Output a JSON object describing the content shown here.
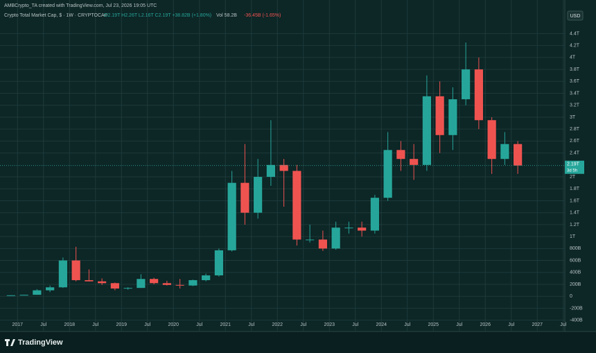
{
  "chart_data": {
    "type": "candlestick",
    "watermark": "AMBCrypto_TA created with TradingView.com, Jul 23, 2026 19:05 UTC",
    "title": "Crypto Total Market Cap, $ · 1W · CRYPTOCAP",
    "ohlc_text": "O2.19T H2.26T L2.16T C2.19T +38.82B (+1.80%)",
    "volume_text": "Vol 58.2B",
    "change_text": "-36.45B (-1.65%)",
    "currency": "USD",
    "brand": "TradingView",
    "up_color": "#26a69a",
    "down_color": "#ef5350",
    "x": [
      2016.75,
      2017.0,
      2017.25,
      2017.5,
      2017.75,
      2018.0,
      2018.25,
      2018.5,
      2018.75,
      2019.0,
      2019.25,
      2019.5,
      2019.75,
      2020.0,
      2020.25,
      2020.5,
      2020.75,
      2021.0,
      2021.25,
      2021.5,
      2021.75,
      2022.0,
      2022.25,
      2022.5,
      2022.75,
      2023.0,
      2023.25,
      2023.5,
      2023.75,
      2024.0,
      2024.25,
      2024.5,
      2024.75,
      2025.0,
      2025.25,
      2025.5,
      2025.75,
      2026.0,
      2026.25,
      2026.5
    ],
    "open": [
      0.012,
      0.017,
      0.025,
      0.1,
      0.15,
      0.6,
      0.27,
      0.25,
      0.22,
      0.13,
      0.14,
      0.29,
      0.22,
      0.19,
      0.18,
      0.27,
      0.35,
      0.77,
      1.9,
      1.4,
      2.0,
      2.2,
      2.1,
      0.95,
      0.95,
      0.8,
      1.15,
      1.15,
      1.1,
      1.65,
      2.45,
      2.3,
      2.2,
      3.35,
      2.7,
      3.3,
      3.8,
      2.95,
      2.3,
      2.55
    ],
    "high": [
      0.018,
      0.027,
      0.12,
      0.18,
      0.65,
      0.83,
      0.45,
      0.3,
      0.23,
      0.15,
      0.37,
      0.31,
      0.26,
      0.29,
      0.28,
      0.38,
      0.8,
      2.1,
      2.55,
      2.3,
      2.95,
      2.3,
      2.2,
      1.2,
      1.1,
      1.25,
      1.25,
      1.25,
      1.7,
      2.75,
      2.6,
      2.55,
      3.7,
      3.6,
      3.5,
      4.25,
      4.0,
      3.0,
      2.75,
      2.6
    ],
    "low": [
      0.011,
      0.016,
      0.025,
      0.07,
      0.14,
      0.25,
      0.25,
      0.19,
      0.1,
      0.11,
      0.14,
      0.2,
      0.18,
      0.13,
      0.17,
      0.25,
      0.33,
      0.75,
      1.2,
      1.3,
      1.85,
      1.5,
      0.85,
      0.9,
      0.76,
      0.78,
      1.05,
      1.0,
      1.05,
      1.6,
      2.1,
      1.95,
      2.1,
      2.4,
      2.45,
      3.2,
      2.8,
      2.05,
      2.2,
      2.05
    ],
    "close": [
      0.017,
      0.025,
      0.1,
      0.15,
      0.6,
      0.27,
      0.25,
      0.22,
      0.13,
      0.14,
      0.29,
      0.22,
      0.19,
      0.18,
      0.27,
      0.35,
      0.77,
      1.9,
      1.4,
      2.0,
      2.2,
      2.1,
      0.95,
      0.95,
      0.8,
      1.15,
      1.15,
      1.1,
      1.65,
      2.45,
      2.3,
      2.2,
      3.35,
      2.7,
      3.3,
      3.8,
      2.95,
      2.3,
      2.55,
      2.19
    ],
    "last_price": {
      "value": 2.19,
      "label": "2.19T"
    },
    "countdown": "3d 5h",
    "xlim": [
      2016.73,
      2027.53
    ],
    "ylim": [
      -0.59,
      4.8
    ],
    "xticks": [
      {
        "value": 2017,
        "label": "2017"
      },
      {
        "value": 2017.5,
        "label": "Jul"
      },
      {
        "value": 2018,
        "label": "2018"
      },
      {
        "value": 2018.5,
        "label": "Jul"
      },
      {
        "value": 2019,
        "label": "2019"
      },
      {
        "value": 2019.5,
        "label": "Jul"
      },
      {
        "value": 2020,
        "label": "2020"
      },
      {
        "value": 2020.5,
        "label": "Jul"
      },
      {
        "value": 2021,
        "label": "2021"
      },
      {
        "value": 2021.5,
        "label": "Jul"
      },
      {
        "value": 2022,
        "label": "2022"
      },
      {
        "value": 2022.5,
        "label": "Jul"
      },
      {
        "value": 2023,
        "label": "2023"
      },
      {
        "value": 2023.5,
        "label": "Jul"
      },
      {
        "value": 2024,
        "label": "2024"
      },
      {
        "value": 2024.5,
        "label": "Jul"
      },
      {
        "value": 2025,
        "label": "2025"
      },
      {
        "value": 2025.5,
        "label": "Jul"
      },
      {
        "value": 2026,
        "label": "2026"
      },
      {
        "value": 2026.5,
        "label": "Jul"
      },
      {
        "value": 2027,
        "label": "2027"
      },
      {
        "value": 2027.5,
        "label": "Jul"
      }
    ],
    "yticks": [
      {
        "value": -0.4,
        "label": "-400B"
      },
      {
        "value": -0.2,
        "label": "-200B"
      },
      0,
      {
        "value": 0.2,
        "label": "200B"
      },
      {
        "value": 0.4,
        "label": "400B"
      },
      {
        "value": 0.6,
        "label": "600B"
      },
      {
        "value": 0.8,
        "label": "800B"
      },
      {
        "value": 1,
        "label": "1T"
      },
      {
        "value": 1.2,
        "label": "1.2T"
      },
      {
        "value": 1.4,
        "label": "1.4T"
      },
      {
        "value": 1.6,
        "label": "1.6T"
      },
      {
        "value": 1.8,
        "label": "1.8T"
      },
      {
        "value": 2,
        "label": "2T"
      },
      {
        "value": 2.4,
        "label": "2.4T"
      },
      {
        "value": 2.6,
        "label": "2.6T"
      },
      {
        "value": 2.8,
        "label": "2.8T"
      },
      {
        "value": 3,
        "label": "3T"
      },
      {
        "value": 3.2,
        "label": "3.2T"
      },
      {
        "value": 3.4,
        "label": "3.4T"
      },
      {
        "value": 3.6,
        "label": "3.6T"
      },
      {
        "value": 3.8,
        "label": "3.8T"
      },
      {
        "value": 4,
        "label": "4T"
      },
      {
        "value": 4.2,
        "label": "4.2T"
      },
      {
        "value": 4.4,
        "label": "4.4T"
      }
    ],
    "grid": true
  }
}
